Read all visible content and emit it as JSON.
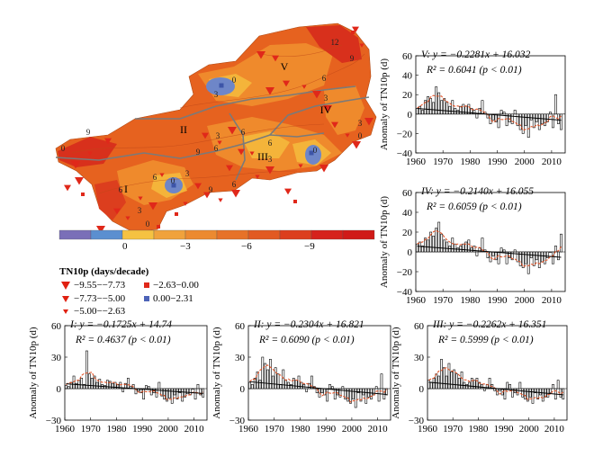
{
  "figure": {
    "colorbar": {
      "ticks": [
        "0",
        "−3",
        "−6",
        "−9"
      ],
      "colors": [
        "#7a6fb8",
        "#5b8fd0",
        "#f5c242",
        "#f0a23c",
        "#ec8a30",
        "#e77228",
        "#e25a22",
        "#dc3e1e",
        "#d6221c",
        "#d01a18"
      ]
    },
    "legend": {
      "title": "TN10p (days/decade)",
      "items": [
        {
          "symbol": "large-red-triangle",
          "label": "−9.55−−7.73"
        },
        {
          "symbol": "medium-red-triangle",
          "label": "−7.73−−5.00"
        },
        {
          "symbol": "small-red-triangle",
          "label": "−5.00−−2.63"
        },
        {
          "symbol": "small-red-square",
          "label": "−2.63−0.00"
        },
        {
          "symbol": "blue-square",
          "label": "0.00−2.31"
        }
      ]
    },
    "map": {
      "region_labels": [
        "I",
        "II",
        "III",
        "IV",
        "V"
      ],
      "contour_labels": [
        "12",
        "9",
        "9",
        "6",
        "3",
        "3",
        "0",
        "3",
        "0",
        "9",
        "3",
        "6",
        "6",
        "6",
        "0",
        "3",
        "0",
        "6",
        "6",
        "9",
        "3",
        "0",
        "3",
        "6",
        "0"
      ],
      "colors": {
        "dark_orange": "#e2561f",
        "orange": "#ef8a2c",
        "light": "#f4b43a",
        "blue": "#6e86c8",
        "red": "#d8301c",
        "boundary": "#7a7a7a",
        "marker": "#e0281a"
      }
    }
  },
  "chart_data": [
    {
      "type": "bar",
      "panel": "I",
      "equation": "I: y = −0.1725x + 14.74",
      "r2": "R² = 0.4637 (p < 0.01)",
      "ylabel": "Anomaly of TN10p (d)",
      "xlim": [
        1960,
        2015
      ],
      "ylim": [
        -30,
        60
      ],
      "xticks": [
        "1960",
        "1970",
        "1980",
        "1990",
        "2000",
        "2010"
      ],
      "yticks": [
        "60",
        "30",
        "0",
        "−30"
      ],
      "trend": [
        -0.1725,
        14.74
      ],
      "x": [
        1960,
        1961,
        1962,
        1963,
        1964,
        1965,
        1966,
        1967,
        1968,
        1969,
        1970,
        1971,
        1972,
        1973,
        1974,
        1975,
        1976,
        1977,
        1978,
        1979,
        1980,
        1981,
        1982,
        1983,
        1984,
        1985,
        1986,
        1987,
        1988,
        1989,
        1990,
        1991,
        1992,
        1993,
        1994,
        1995,
        1996,
        1997,
        1998,
        1999,
        2000,
        2001,
        2002,
        2003,
        2004,
        2005,
        2006,
        2007,
        2008,
        2009,
        2010,
        2011,
        2012,
        2013
      ],
      "values": [
        3,
        2,
        6,
        12,
        5,
        8,
        10,
        4,
        36,
        14,
        10,
        12,
        6,
        9,
        4,
        3,
        8,
        7,
        5,
        6,
        4,
        6,
        -3,
        5,
        10,
        2,
        4,
        -5,
        -2,
        -4,
        -10,
        3,
        2,
        -6,
        -4,
        -8,
        6,
        -7,
        -10,
        -12,
        -9,
        -14,
        -6,
        -10,
        -4,
        -12,
        -8,
        -5,
        -6,
        0,
        -10,
        4,
        -6,
        -8
      ]
    },
    {
      "type": "bar",
      "panel": "II",
      "equation": "II: y = −0.2304x + 16.821",
      "r2": "R² = 0.6090 (p < 0.01)",
      "ylabel": "Anomaly of TN10p (d)",
      "xlim": [
        1960,
        2015
      ],
      "ylim": [
        -30,
        60
      ],
      "xticks": [
        "1960",
        "1970",
        "1980",
        "1990",
        "2000",
        "2010"
      ],
      "yticks": [
        "60",
        "30",
        "0",
        "−30"
      ],
      "trend": [
        -0.2304,
        16.821
      ],
      "x": [
        1960,
        1961,
        1962,
        1963,
        1964,
        1965,
        1966,
        1967,
        1968,
        1969,
        1970,
        1971,
        1972,
        1973,
        1974,
        1975,
        1976,
        1977,
        1978,
        1979,
        1980,
        1981,
        1982,
        1983,
        1984,
        1985,
        1986,
        1987,
        1988,
        1989,
        1990,
        1991,
        1992,
        1993,
        1994,
        1995,
        1996,
        1997,
        1998,
        1999,
        2000,
        2001,
        2002,
        2003,
        2004,
        2005,
        2006,
        2007,
        2008,
        2009,
        2010,
        2011,
        2012,
        2013
      ],
      "values": [
        6,
        4,
        10,
        16,
        8,
        30,
        24,
        18,
        28,
        12,
        20,
        14,
        4,
        18,
        8,
        6,
        4,
        10,
        8,
        12,
        6,
        4,
        -3,
        5,
        12,
        2,
        -4,
        -8,
        -4,
        -6,
        -12,
        4,
        2,
        -10,
        -6,
        -8,
        2,
        -10,
        -12,
        -14,
        -10,
        -18,
        -4,
        -12,
        -6,
        -14,
        -8,
        -10,
        -6,
        2,
        -12,
        14,
        -10,
        -6
      ]
    },
    {
      "type": "bar",
      "panel": "III",
      "equation": "III: y = −0.2262x + 16.351",
      "r2": "R² = 0.5999 (p < 0.01)",
      "ylabel": "Anomaly of TN10p (d)",
      "xlim": [
        1960,
        2015
      ],
      "ylim": [
        -30,
        60
      ],
      "xticks": [
        "1960",
        "1970",
        "1980",
        "1990",
        "2000",
        "2010"
      ],
      "yticks": [
        "60",
        "30",
        "0",
        "−30"
      ],
      "trend": [
        -0.2262,
        16.351
      ],
      "x": [
        1960,
        1961,
        1962,
        1963,
        1964,
        1965,
        1966,
        1967,
        1968,
        1969,
        1970,
        1971,
        1972,
        1973,
        1974,
        1975,
        1976,
        1977,
        1978,
        1979,
        1980,
        1981,
        1982,
        1983,
        1984,
        1985,
        1986,
        1987,
        1988,
        1989,
        1990,
        1991,
        1992,
        1993,
        1994,
        1995,
        1996,
        1997,
        1998,
        1999,
        2000,
        2001,
        2002,
        2003,
        2004,
        2005,
        2006,
        2007,
        2008,
        2009,
        2010,
        2011,
        2012,
        2013
      ],
      "values": [
        8,
        6,
        10,
        14,
        12,
        28,
        20,
        12,
        24,
        16,
        18,
        14,
        10,
        16,
        6,
        4,
        6,
        10,
        8,
        10,
        6,
        4,
        -2,
        4,
        10,
        4,
        -2,
        -6,
        -2,
        -6,
        -10,
        6,
        4,
        -8,
        -4,
        -6,
        6,
        -8,
        -10,
        -12,
        -8,
        -14,
        -4,
        -10,
        -6,
        -12,
        -8,
        -8,
        -4,
        4,
        -10,
        8,
        -8,
        -10
      ]
    },
    {
      "type": "bar",
      "panel": "IV",
      "equation": "IV: y = −0.2140x + 16.055",
      "r2": "R² = 0.6059 (p < 0.01)",
      "ylabel": "Anomaly of TN10p (d)",
      "xlim": [
        1960,
        2015
      ],
      "ylim": [
        -40,
        60
      ],
      "xticks": [
        "1960",
        "1970",
        "1980",
        "1990",
        "2000",
        "2010"
      ],
      "yticks": [
        "60",
        "40",
        "20",
        "0",
        "−20",
        "−40"
      ],
      "trend": [
        -0.214,
        16.055
      ],
      "x": [
        1960,
        1961,
        1962,
        1963,
        1964,
        1965,
        1966,
        1967,
        1968,
        1969,
        1970,
        1971,
        1972,
        1973,
        1974,
        1975,
        1976,
        1977,
        1978,
        1979,
        1980,
        1981,
        1982,
        1983,
        1984,
        1985,
        1986,
        1987,
        1988,
        1989,
        1990,
        1991,
        1992,
        1993,
        1994,
        1995,
        1996,
        1997,
        1998,
        1999,
        2000,
        2001,
        2002,
        2003,
        2004,
        2005,
        2006,
        2007,
        2008,
        2009,
        2010,
        2011,
        2012,
        2013
      ],
      "values": [
        8,
        10,
        6,
        14,
        12,
        20,
        16,
        24,
        30,
        18,
        12,
        10,
        6,
        14,
        8,
        4,
        6,
        8,
        10,
        12,
        4,
        6,
        -4,
        4,
        14,
        2,
        -6,
        -10,
        -4,
        -8,
        -12,
        4,
        2,
        -12,
        -6,
        -8,
        2,
        -10,
        -14,
        -16,
        -12,
        -22,
        -6,
        -14,
        -8,
        -16,
        -10,
        -12,
        -6,
        0,
        -12,
        6,
        -8,
        18
      ]
    },
    {
      "type": "bar",
      "panel": "V",
      "equation": "V: y = −0.2281x + 16.032",
      "r2": "R² = 0.6041 (p < 0.01)",
      "ylabel": "Anomaly of TN10p (d)",
      "xlim": [
        1960,
        2015
      ],
      "ylim": [
        -40,
        60
      ],
      "xticks": [
        "1960",
        "1970",
        "1980",
        "1990",
        "2000",
        "2010"
      ],
      "yticks": [
        "60",
        "40",
        "20",
        "0",
        "−20",
        "−40"
      ],
      "trend": [
        -0.2281,
        16.032
      ],
      "x": [
        1960,
        1961,
        1962,
        1963,
        1964,
        1965,
        1966,
        1967,
        1968,
        1969,
        1970,
        1971,
        1972,
        1973,
        1974,
        1975,
        1976,
        1977,
        1978,
        1979,
        1980,
        1981,
        1982,
        1983,
        1984,
        1985,
        1986,
        1987,
        1988,
        1989,
        1990,
        1991,
        1992,
        1993,
        1994,
        1995,
        1996,
        1997,
        1998,
        1999,
        2000,
        2001,
        2002,
        2003,
        2004,
        2005,
        2006,
        2007,
        2008,
        2009,
        2010,
        2011,
        2012,
        2013
      ],
      "values": [
        6,
        8,
        4,
        14,
        18,
        16,
        12,
        28,
        22,
        14,
        16,
        12,
        8,
        14,
        6,
        4,
        8,
        10,
        8,
        10,
        6,
        4,
        -4,
        6,
        14,
        2,
        -4,
        -10,
        -6,
        -8,
        -14,
        4,
        2,
        -12,
        -8,
        -10,
        4,
        -12,
        -16,
        -20,
        -12,
        -24,
        -6,
        -14,
        -8,
        -16,
        -10,
        -12,
        -8,
        2,
        -14,
        20,
        -10,
        -16
      ]
    }
  ]
}
